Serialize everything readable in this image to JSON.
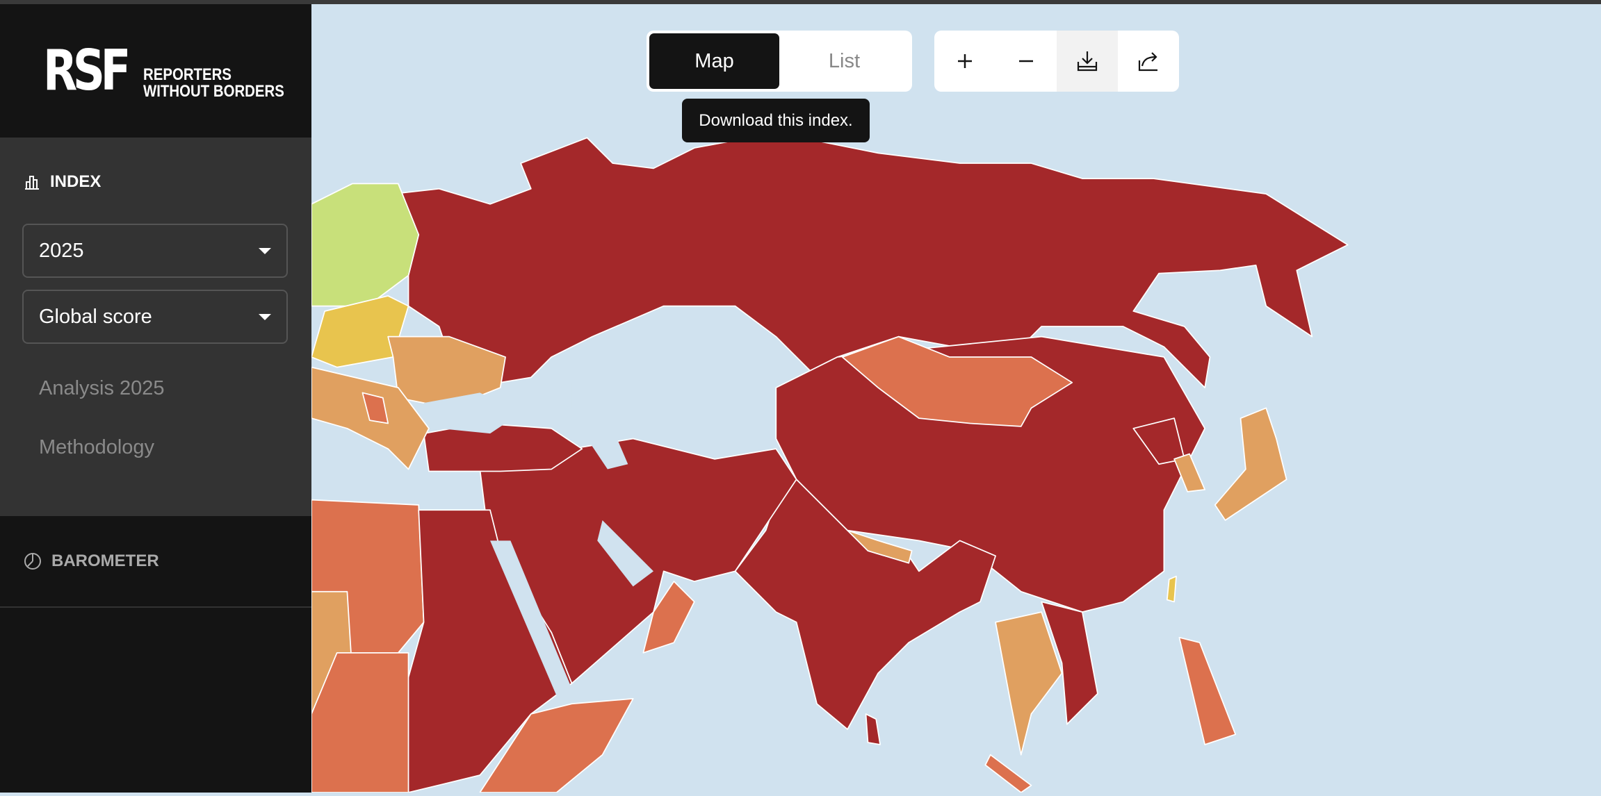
{
  "logo": {
    "mark": "RSF",
    "line1": "REPORTERS",
    "line2": "WITHOUT BORDERS"
  },
  "sidebar": {
    "index": {
      "label": "INDEX",
      "icon": "bar-chart-icon"
    },
    "year_select": {
      "value": "2025"
    },
    "score_select": {
      "value": "Global score"
    },
    "links": [
      {
        "label": "Analysis 2025"
      },
      {
        "label": "Methodology"
      }
    ],
    "barometer": {
      "label": "BAROMETER",
      "icon": "gauge-icon"
    }
  },
  "view_toggle": {
    "map": "Map",
    "list": "List",
    "active": "Map"
  },
  "toolbar": {
    "zoom_in": "plus-icon",
    "zoom_out": "minus-icon",
    "download": "download-icon",
    "share": "share-icon"
  },
  "tooltip": "Download this index.",
  "map_colors": {
    "very_serious": "#a4282a",
    "difficult": "#dc714e",
    "problematic": "#e0a060",
    "satisfactory": "#e8c44e",
    "good": "#c8e07a",
    "sea": "#d0e2ef"
  }
}
